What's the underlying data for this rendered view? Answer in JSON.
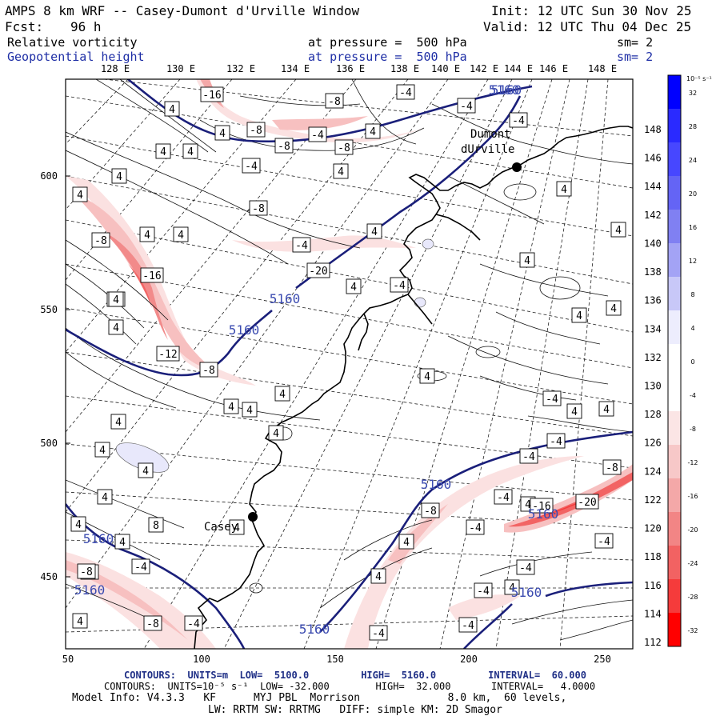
{
  "header": {
    "title": "AMPS 8 km WRF -- Casey-Dumont d'Urville Window",
    "init": "Init: 12 UTC Sun 30 Nov 25",
    "fcst_label": "Fcst:",
    "fcst_value": "96 h",
    "valid": "Valid: 12 UTC Thu 04 Dec 25",
    "field1": {
      "name": "Relative vorticity",
      "level": "at pressure =  500 hPa",
      "sm": "sm= 2"
    },
    "field2": {
      "name": "Geopotential height",
      "level": "at pressure =  500 hPa",
      "sm": "sm= 2"
    }
  },
  "lon_labels": [
    "128 E",
    "130 E",
    "132 E",
    "134 E",
    "136 E",
    "138 E",
    "140 E",
    "142 E",
    "144 E",
    "146 E",
    "148 E"
  ],
  "lat_labels": [
    "148 E",
    "146 E",
    "144 E",
    "142 E",
    "140 E",
    "138 E",
    "136 E",
    "134 E",
    "132 E",
    "130 E",
    "128 E",
    "126 E",
    "124 E",
    "122 E",
    "120 E",
    "118 E",
    "116 E",
    "114 E",
    "112 E"
  ],
  "y_axis": [
    "600",
    "550",
    "500",
    "450"
  ],
  "x_axis": [
    "50",
    "100",
    "150",
    "200",
    "250"
  ],
  "colorbar": {
    "unit": "10⁻⁵ s⁻¹",
    "ticks": [
      "32",
      "28",
      "24",
      "20",
      "16",
      "12",
      "8",
      "4",
      "0",
      "-4",
      "-8",
      "-12",
      "-16",
      "-20",
      "-24",
      "-28",
      "-32"
    ],
    "colors": [
      "#0000ff",
      "#2a2aff",
      "#4747ff",
      "#6464f5",
      "#8080f2",
      "#a3a3f5",
      "#c8c8f8",
      "#ededfd",
      "#ffffff",
      "#ffffff",
      "#fbe5e5",
      "#f7c8c8",
      "#f4a8a8",
      "#f28585",
      "#f26262",
      "#f53b3b",
      "#ff0000"
    ]
  },
  "places": [
    {
      "name": "Casey"
    },
    {
      "name": "Dumont\ndUrville"
    }
  ],
  "vort_labels": [
    "-16",
    "-8",
    "-4",
    "-4",
    "-4",
    "4",
    "4",
    "-8",
    "-8",
    "-4",
    "-8",
    "4",
    "4",
    "4",
    "-4",
    "4",
    "4",
    "4",
    "-8",
    "4",
    "-8",
    "4",
    "-16",
    "-4",
    "-20",
    "4",
    "-12",
    "-8",
    "4",
    "4",
    "4",
    "4",
    "4",
    "4",
    "-4",
    "-4",
    "4",
    "4",
    "4",
    "4",
    "4",
    "4",
    "4",
    "4",
    "4",
    "4",
    "4",
    "8",
    "4",
    "-4",
    "-4",
    "4",
    "4",
    "-4",
    "4",
    "-4",
    "-4",
    "-8",
    "-4",
    "4",
    "-8",
    "-16",
    "-20",
    "-4",
    "-4",
    "4",
    "-4",
    "4",
    "4",
    "-4",
    "-4",
    "-8",
    "-4",
    "-4",
    "4",
    "-8",
    "4"
  ],
  "height_labels": [
    "5160",
    "5160",
    "5160",
    "5160",
    "5160",
    "5160",
    "5160",
    "5160",
    "5160",
    "5160"
  ],
  "footer": {
    "line1": "CONTOURS:  UNITS=m  LOW=  5100.0         HIGH=  5160.0         INTERVAL=  60.000",
    "line2": "CONTOURS:  UNITS=10⁻⁵ s⁻¹  LOW= -32.000        HIGH=  32.000       INTERVAL=   4.0000",
    "line3": "Model Info: V4.3.3   KF      MYJ PBL  Morrison              8.0 km,  60 levels,",
    "line4": "LW: RRTM SW: RRTMG   DIFF: simple KM: 2D Smagor"
  }
}
